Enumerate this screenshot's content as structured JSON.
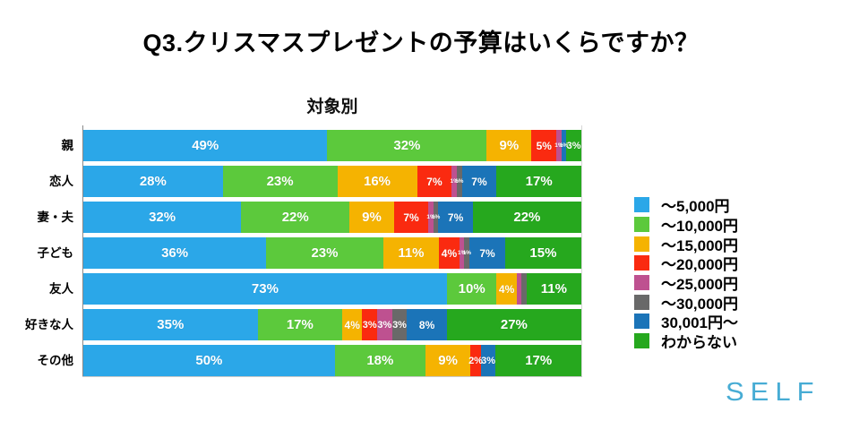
{
  "page": {
    "title": "Q3.クリスマスプレゼントの予算はいくらですか？",
    "logo_text": "SELF"
  },
  "chart_data": {
    "type": "bar",
    "stacked": true,
    "orientation": "horizontal",
    "unit": "%",
    "title": "対象別",
    "xlim": [
      0,
      100
    ],
    "grid": "right-edge-only",
    "legend_position": "right",
    "categories": [
      "親",
      "恋人",
      "妻・夫",
      "子ども",
      "友人",
      "好きな人",
      "その他"
    ],
    "series": [
      {
        "name": "～5,000円",
        "color": "#2BA7E8",
        "values": [
          49,
          28,
          32,
          36,
          73,
          35,
          50
        ]
      },
      {
        "name": "～10,000円",
        "color": "#5CC93C",
        "values": [
          32,
          23,
          22,
          23,
          10,
          17,
          18
        ]
      },
      {
        "name": "～15,000円",
        "color": "#F5B301",
        "values": [
          9,
          16,
          9,
          11,
          4,
          4,
          9
        ]
      },
      {
        "name": "～20,000円",
        "color": "#FA2A10",
        "values": [
          5,
          7,
          7,
          4,
          0,
          3,
          2
        ]
      },
      {
        "name": "～25,000円",
        "color": "#BE5190",
        "values": [
          1,
          1,
          1,
          1,
          1,
          3,
          0
        ]
      },
      {
        "name": "～30,000円",
        "color": "#696969",
        "values": [
          0,
          1,
          1,
          1,
          1,
          3,
          0
        ]
      },
      {
        "name": "30,001円～",
        "color": "#1B74B8",
        "values": [
          1,
          7,
          7,
          7,
          0,
          8,
          3
        ]
      },
      {
        "name": "わからない",
        "color": "#26A81E",
        "values": [
          3,
          17,
          22,
          15,
          11,
          27,
          17
        ]
      }
    ],
    "bar_labels": [
      [
        "49%",
        "32%",
        "9%",
        "5%",
        "1%",
        "",
        "1%",
        "3%"
      ],
      [
        "28%",
        "23%",
        "16%",
        "7%",
        "1%",
        "1%",
        "7%",
        "17%"
      ],
      [
        "32%",
        "22%",
        "9%",
        "7%",
        "1%",
        "1%",
        "7%",
        "22%"
      ],
      [
        "36%",
        "23%",
        "11%",
        "4%",
        "1%",
        "1%",
        "7%",
        "15%"
      ],
      [
        "73%",
        "10%",
        "4%",
        "",
        "",
        "",
        "",
        "11%"
      ],
      [
        "35%",
        "17%",
        "4%",
        "3%",
        "3%",
        "3%",
        "8%",
        "27%"
      ],
      [
        "50%",
        "18%",
        "9%",
        "2%",
        "",
        "",
        "3%",
        "17%"
      ]
    ]
  }
}
